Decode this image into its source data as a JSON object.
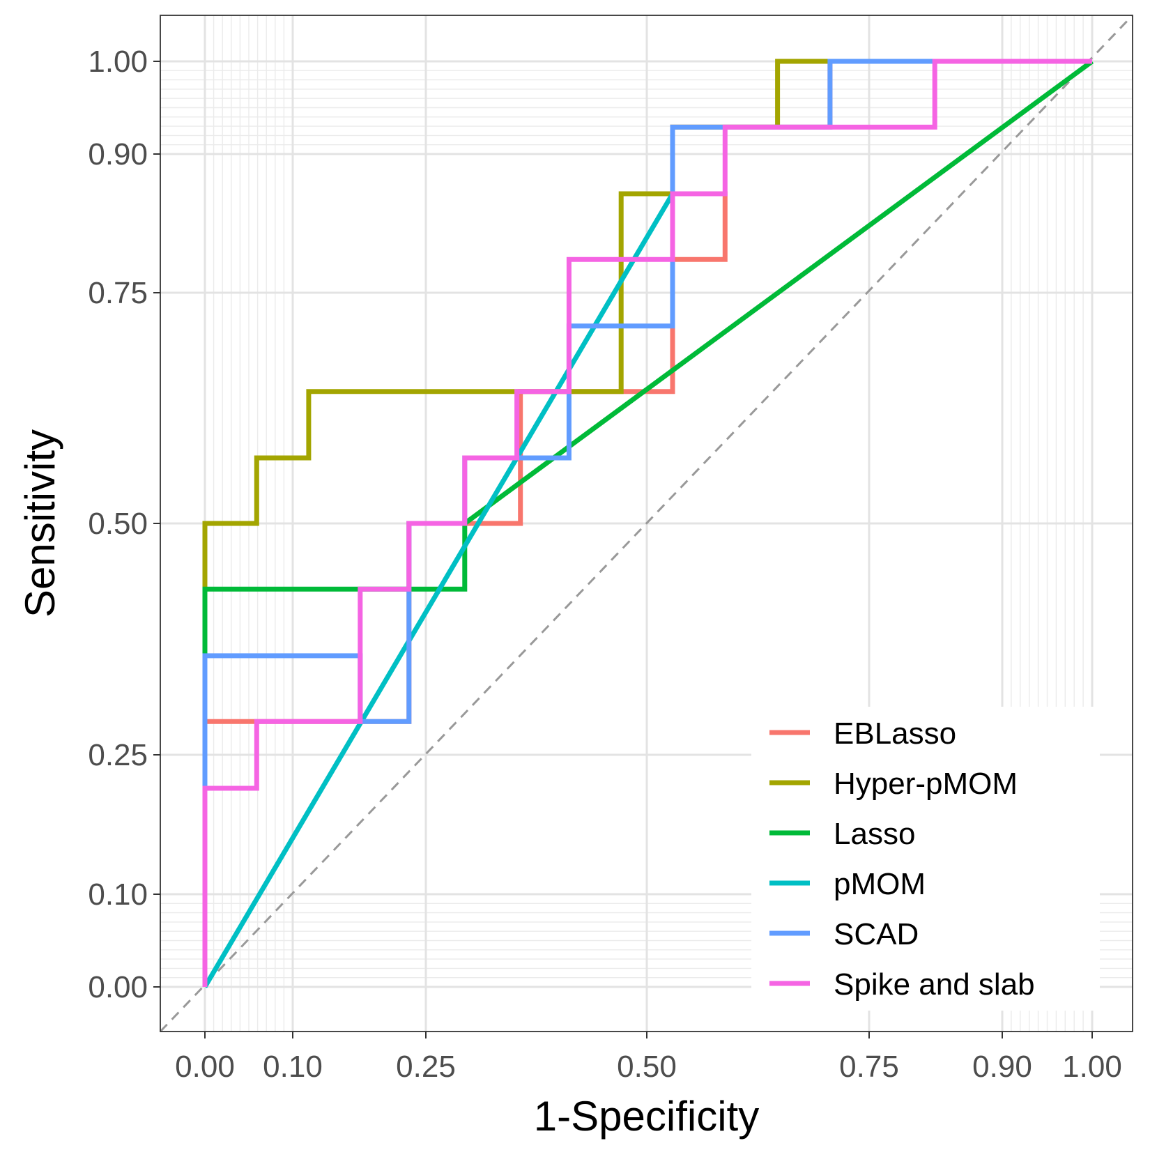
{
  "chart_data": {
    "type": "line",
    "subtype": "roc-step",
    "title": "",
    "xlabel": "1-Specificity",
    "ylabel": "Sensitivity",
    "x_scale": "logit-like (ROC plot scale)",
    "y_scale": "logit-like (ROC plot scale)",
    "xticks": [
      0.0,
      0.1,
      0.25,
      0.5,
      0.75,
      0.9,
      1.0
    ],
    "xtick_labels": [
      "0.00",
      "0.10",
      "0.25",
      "0.50",
      "0.75",
      "0.90",
      "1.00"
    ],
    "yticks": [
      0.0,
      0.1,
      0.25,
      0.5,
      0.75,
      0.9,
      1.0
    ],
    "ytick_labels": [
      "0.00",
      "0.10",
      "0.25",
      "0.50",
      "0.75",
      "0.90",
      "1.00"
    ],
    "grid": true,
    "legend_position": "bottom-right",
    "reference_line": {
      "name": "chance diagonal",
      "color": "#999999",
      "style": "dashed"
    },
    "series": [
      {
        "name": "EBLasso",
        "color": "#F8766D",
        "points": [
          [
            0,
            0
          ],
          [
            0,
            0.286
          ],
          [
            0.231,
            0.286
          ],
          [
            0.231,
            0.5
          ],
          [
            0.357,
            0.5
          ],
          [
            0.357,
            0.643
          ],
          [
            0.5,
            0.643
          ],
          [
            0.529,
            0.643
          ],
          [
            0.529,
            0.786
          ],
          [
            0.588,
            0.786
          ],
          [
            0.588,
            0.857
          ],
          [
            0.529,
            0.857
          ],
          [
            0.529,
            0.929
          ],
          [
            0.647,
            0.929
          ],
          [
            0.706,
            0.929
          ],
          [
            0.706,
            1.0
          ],
          [
            1.0,
            1.0
          ]
        ]
      },
      {
        "name": "Hyper-pMOM",
        "color": "#A3A500",
        "points": [
          [
            0,
            0
          ],
          [
            0,
            0.5
          ],
          [
            0.059,
            0.5
          ],
          [
            0.059,
            0.571
          ],
          [
            0.118,
            0.571
          ],
          [
            0.118,
            0.643
          ],
          [
            0.471,
            0.643
          ],
          [
            0.471,
            0.857
          ],
          [
            0.529,
            0.857
          ],
          [
            0.529,
            0.929
          ],
          [
            0.647,
            0.929
          ],
          [
            0.647,
            1.0
          ],
          [
            1.0,
            1.0
          ]
        ]
      },
      {
        "name": "Lasso",
        "color": "#00BA38",
        "points": [
          [
            0,
            0
          ],
          [
            0,
            0.429
          ],
          [
            0.294,
            0.429
          ],
          [
            0.294,
            0.5
          ],
          [
            1.0,
            1.0
          ]
        ]
      },
      {
        "name": "pMOM",
        "color": "#00BFC4",
        "points": [
          [
            0,
            0
          ],
          [
            0.529,
            0.857
          ]
        ]
      },
      {
        "name": "SCAD",
        "color": "#619CFF",
        "points": [
          [
            0,
            0
          ],
          [
            0,
            0.357
          ],
          [
            0.176,
            0.357
          ],
          [
            0.176,
            0.286
          ],
          [
            0.231,
            0.286
          ],
          [
            0.231,
            0.5
          ],
          [
            0.294,
            0.5
          ],
          [
            0.294,
            0.571
          ],
          [
            0.412,
            0.571
          ],
          [
            0.412,
            0.714
          ],
          [
            0.529,
            0.714
          ],
          [
            0.529,
            0.929
          ],
          [
            0.706,
            0.929
          ],
          [
            0.706,
            1.0
          ],
          [
            1.0,
            1.0
          ]
        ]
      },
      {
        "name": "Spike and slab",
        "color": "#F564E3",
        "points": [
          [
            0,
            0
          ],
          [
            0,
            0.214
          ],
          [
            0.059,
            0.214
          ],
          [
            0.059,
            0.286
          ],
          [
            0.176,
            0.286
          ],
          [
            0.176,
            0.429
          ],
          [
            0.231,
            0.429
          ],
          [
            0.231,
            0.5
          ],
          [
            0.294,
            0.5
          ],
          [
            0.294,
            0.571
          ],
          [
            0.353,
            0.571
          ],
          [
            0.353,
            0.643
          ],
          [
            0.412,
            0.643
          ],
          [
            0.412,
            0.786
          ],
          [
            0.529,
            0.786
          ],
          [
            0.529,
            0.857
          ],
          [
            0.588,
            0.857
          ],
          [
            0.588,
            0.929
          ],
          [
            0.824,
            0.929
          ],
          [
            0.824,
            1.0
          ],
          [
            1.0,
            1.0
          ]
        ]
      }
    ]
  }
}
